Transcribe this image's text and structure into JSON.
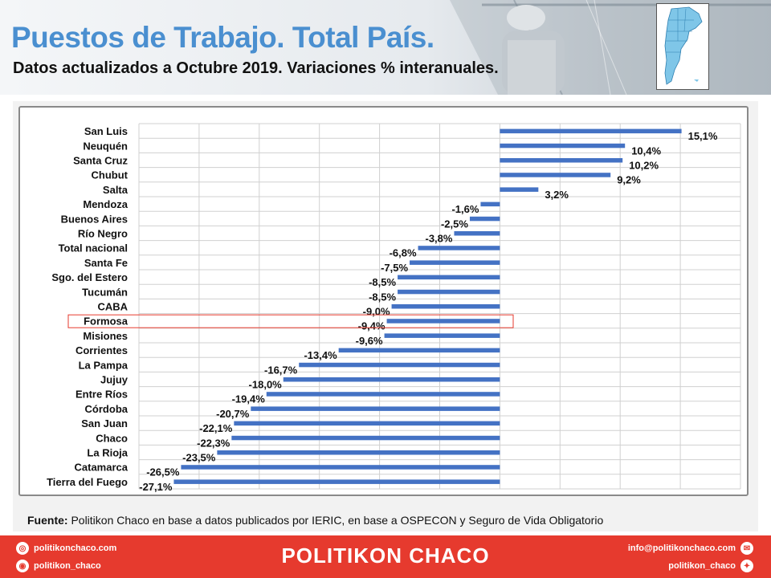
{
  "header": {
    "title": "Puestos de Trabajo. Total País.",
    "subtitle": "Datos actualizados a Octubre 2019. Variaciones % interanuales."
  },
  "colors": {
    "bar": "#4472c4",
    "title": "#4a8fd0",
    "highlight": "#e63a2e",
    "footer": "#e63a2e"
  },
  "chart_data": {
    "type": "bar",
    "orientation": "horizontal",
    "categories": [
      "San Luis",
      "Neuquén",
      "Santa Cruz",
      "Chubut",
      "Salta",
      "Mendoza",
      "Buenos Aires",
      "Río Negro",
      "Total nacional",
      "Santa Fe",
      "Sgo. del Estero",
      "Tucumán",
      "CABA",
      "Formosa",
      "Misiones",
      "Corrientes",
      "La Pampa",
      "Jujuy",
      "Entre Ríos",
      "Córdoba",
      "San Juan",
      "Chaco",
      "La Rioja",
      "Catamarca",
      "Tierra del Fuego"
    ],
    "values": [
      15.1,
      10.4,
      10.2,
      9.2,
      3.2,
      -1.6,
      -2.5,
      -3.8,
      -6.8,
      -7.5,
      -8.5,
      -8.5,
      -9.0,
      -9.4,
      -9.6,
      -13.4,
      -16.7,
      -18.0,
      -19.4,
      -20.7,
      -22.1,
      -22.3,
      -23.5,
      -26.5,
      -27.1
    ],
    "value_labels": [
      "15,1%",
      "10,4%",
      "10,2%",
      "9,2%",
      "3,2%",
      "-1,6%",
      "-2,5%",
      "-3,8%",
      "-6,8%",
      "-7,5%",
      "-8,5%",
      "-8,5%",
      "-9,0%",
      "-9,4%",
      "-9,6%",
      "-13,4%",
      "-16,7%",
      "-18,0%",
      "-19,4%",
      "-20,7%",
      "-22,1%",
      "-22,3%",
      "-23,5%",
      "-26,5%",
      "-27,1%"
    ],
    "xlim": [
      -30,
      20
    ],
    "highlighted_category": "Formosa",
    "grid": true
  },
  "source": {
    "label": "Fuente:",
    "text": " Politikon Chaco en base a datos publicados por IERIC,  en base a OSPECON y Seguro de Vida Obligatorio"
  },
  "footer": {
    "brand": "POLITIKON CHACO",
    "website": "politikonchaco.com",
    "instagram": "politikon_chaco",
    "email": "info@politikonchaco.com",
    "twitter": "politikon_chaco"
  }
}
